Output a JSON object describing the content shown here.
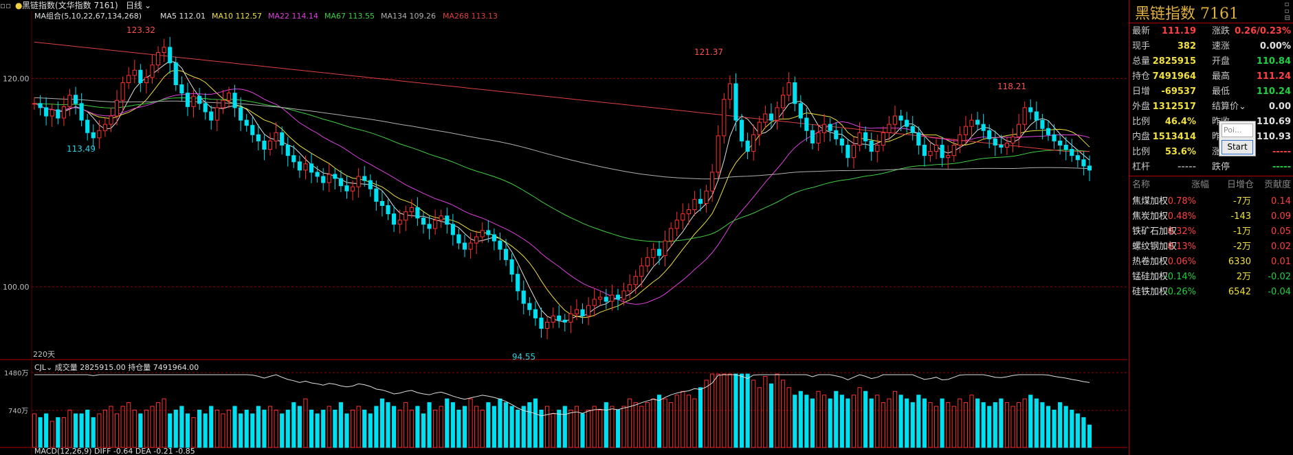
{
  "header": {
    "icons_label": "▫▫",
    "dot": "●",
    "title": "黑链指数(文华指数  7161)",
    "period": "日线",
    "dropdown": "⌄"
  },
  "ma_legend": {
    "group": "MA组合(5,10,22,67,134,268)",
    "items": [
      {
        "label": "MA5 112.01",
        "color": "#e0e0e0"
      },
      {
        "label": "MA10 112.57",
        "color": "#f0e040"
      },
      {
        "label": "MA22 114.14",
        "color": "#e040e0"
      },
      {
        "label": "MA67 113.55",
        "color": "#40d040"
      },
      {
        "label": "MA134 109.26",
        "color": "#b0b0b0"
      },
      {
        "label": "MA268 113.13",
        "color": "#e04040"
      }
    ]
  },
  "price_axis": {
    "labels": [
      {
        "v": 120,
        "text": "120.00"
      },
      {
        "v": 100,
        "text": "100.00"
      }
    ],
    "ymin": 93.2,
    "ymax": 125.3
  },
  "annotations": {
    "high1": "123.32",
    "low1": "113.49",
    "high2": "121.37",
    "low2": "94.55",
    "high3": "118.21",
    "days": "220天"
  },
  "volume": {
    "legend": "CJL⌄ 成交量 2825915.00  持仓量 7491964.00",
    "axis": [
      "1480万",
      "740万"
    ]
  },
  "macd": {
    "legend": "MACD(12,26,9)  DIFF -0.64  DEA -0.21  -0.85"
  },
  "colors": {
    "up": "#ff3030",
    "down": "#00e0f0",
    "grid": "#900000"
  },
  "chart_data": {
    "type": "candlestick",
    "xlabel": "",
    "ylabel": "",
    "ylim": [
      93.2,
      125.3
    ],
    "closes": [
      117.6,
      117.2,
      116.4,
      117.0,
      116.2,
      117.3,
      118.4,
      117.6,
      116.0,
      114.8,
      114.3,
      115.0,
      115.6,
      116.4,
      117.9,
      119.6,
      120.3,
      120.8,
      119.6,
      120.1,
      121.3,
      122.5,
      123.0,
      121.5,
      119.4,
      118.6,
      117.3,
      118.3,
      117.6,
      116.8,
      116.0,
      117.2,
      117.9,
      118.6,
      117.2,
      116.0,
      115.5,
      114.6,
      114.0,
      113.2,
      114.0,
      114.8,
      113.6,
      112.6,
      112.0,
      111.2,
      111.8,
      111.0,
      110.6,
      110.0,
      110.8,
      110.4,
      109.7,
      109.2,
      109.6,
      110.6,
      110.2,
      109.4,
      108.2,
      107.8,
      107.0,
      106.0,
      106.4,
      107.2,
      107.6,
      106.6,
      106.0,
      105.6,
      106.4,
      106.8,
      106.0,
      105.0,
      104.2,
      103.6,
      104.2,
      104.8,
      105.4,
      105.0,
      104.4,
      103.6,
      102.6,
      101.2,
      99.6,
      98.4,
      97.8,
      97.0,
      96.0,
      96.6,
      97.2,
      96.8,
      96.6,
      97.4,
      97.8,
      97.2,
      98.2,
      98.8,
      99.0,
      98.6,
      99.2,
      98.8,
      99.6,
      100.2,
      101.0,
      102.0,
      102.8,
      103.6,
      103.0,
      104.4,
      105.6,
      106.4,
      107.0,
      107.4,
      108.4,
      108.0,
      109.2,
      111.0,
      114.5,
      118.0,
      119.5,
      116.0,
      114.0,
      113.0,
      114.6,
      115.8,
      116.6,
      116.0,
      117.2,
      118.4,
      119.6,
      117.6,
      116.2,
      115.0,
      113.8,
      114.8,
      115.6,
      115.0,
      114.2,
      113.6,
      112.4,
      113.6,
      114.8,
      114.0,
      113.0,
      113.6,
      114.8,
      115.6,
      116.4,
      116.0,
      115.4,
      114.8,
      113.6,
      112.6,
      113.0,
      113.6,
      112.4,
      112.6,
      113.6,
      114.6,
      115.4,
      116.0,
      115.6,
      115.0,
      114.2,
      113.6,
      113.4,
      113.8,
      114.4,
      115.6,
      117.2,
      116.8,
      116.0,
      115.2,
      114.6,
      114.0,
      113.6,
      113.2,
      112.6,
      112.2,
      111.6,
      111.2
    ],
    "ma": [
      {
        "name": "MA5",
        "values": [
          112.01
        ]
      },
      {
        "name": "MA10",
        "values": [
          112.57
        ]
      },
      {
        "name": "MA22",
        "values": [
          114.14
        ]
      },
      {
        "name": "MA67",
        "values": [
          113.55
        ]
      },
      {
        "name": "MA134",
        "values": [
          109.26
        ]
      },
      {
        "name": "MA268",
        "values": [
          113.13
        ]
      }
    ],
    "volume": [
      9,
      8,
      9,
      7,
      8,
      8,
      10,
      9,
      9,
      10,
      8,
      9,
      10,
      11,
      9,
      11,
      12,
      10,
      9,
      10,
      11,
      12,
      13,
      9,
      10,
      11,
      9,
      8,
      10,
      9,
      11,
      10,
      9,
      10,
      11,
      9,
      10,
      9,
      11,
      10,
      11,
      10,
      9,
      10,
      12,
      11,
      13,
      10,
      9,
      10,
      11,
      10,
      12,
      9,
      10,
      11,
      10,
      9,
      11,
      13,
      12,
      11,
      10,
      12,
      10,
      11,
      9,
      12,
      10,
      11,
      13,
      12,
      10,
      11,
      13,
      11,
      10,
      12,
      11,
      13,
      12,
      11,
      10,
      11,
      12,
      13,
      10,
      11,
      9,
      10,
      11,
      10,
      11,
      9,
      10,
      11,
      10,
      12,
      11,
      10,
      11,
      13,
      12,
      11,
      12,
      13,
      14,
      13,
      12,
      14,
      15,
      14,
      13,
      16,
      18,
      22,
      25,
      20,
      28,
      26,
      22,
      20,
      18,
      16,
      19,
      17,
      21,
      18,
      16,
      14,
      15,
      14,
      13,
      15,
      14,
      13,
      15,
      14,
      13,
      14,
      16,
      15,
      13,
      14,
      12,
      13,
      15,
      14,
      13,
      12,
      14,
      13,
      12,
      11,
      13,
      12,
      11,
      13,
      12,
      14,
      13,
      12,
      11,
      12,
      13,
      12,
      11,
      12,
      13,
      14,
      13,
      12,
      11,
      10,
      12,
      11,
      10,
      9,
      8,
      6
    ]
  },
  "quote": {
    "title": "黑链指数  7161",
    "win_icon": "▫\n▫\n⊟",
    "rows": [
      {
        "l1": "最新",
        "v1": "111.19",
        "c1": "red",
        "l2": "涨跌",
        "v2": "0.26/0.23%",
        "c2": "red"
      },
      {
        "l1": "现手",
        "v1": "382",
        "c1": "yellow",
        "l2": "速涨",
        "v2": "0.00%",
        "c2": "white"
      },
      {
        "l1": "总量",
        "v1": "2825915",
        "c1": "yellow",
        "l2": "开盘",
        "v2": "110.84",
        "c2": "green"
      },
      {
        "l1": "持仓",
        "v1": "7491964",
        "c1": "yellow",
        "l2": "最高",
        "v2": "111.24",
        "c2": "red"
      },
      {
        "l1": "日增",
        "v1": "-69537",
        "c1": "yellow",
        "l2": "最低",
        "v2": "110.24",
        "c2": "green"
      },
      {
        "l1": "外盘",
        "v1": "1312517",
        "c1": "yellow",
        "l2": "结算价⌄",
        "v2": "0.00",
        "c2": "white"
      },
      {
        "l1": "比例",
        "v1": "46.4%",
        "c1": "yellow",
        "l2": "昨收",
        "v2": "110.69",
        "c2": "white"
      },
      {
        "l1": "内盘",
        "v1": "1513414",
        "c1": "yellow",
        "l2": "昨结",
        "v2": "110.93",
        "c2": "white"
      },
      {
        "l1": "比例",
        "v1": "53.6%",
        "c1": "yellow",
        "l2": "涨停",
        "v2": "-----",
        "c2": "red"
      },
      {
        "l1": "杠杆",
        "v1": "-----",
        "c1": "grey",
        "l2": "跌停",
        "v2": "-----",
        "c2": "green"
      }
    ],
    "list_header": [
      "名称",
      "涨幅",
      "日增仓",
      "贡献度"
    ],
    "list": [
      {
        "name": "焦煤加权",
        "chg": "0.78%",
        "cc": "red",
        "inc": "-7万",
        "contrib": "0.14",
        "kc": "red"
      },
      {
        "name": "焦炭加权",
        "chg": "0.48%",
        "cc": "red",
        "inc": "-143",
        "contrib": "0.09",
        "kc": "red"
      },
      {
        "name": "铁矿石加权",
        "chg": "0.32%",
        "cc": "red",
        "inc": "-1万",
        "contrib": "0.05",
        "kc": "red"
      },
      {
        "name": "螺纹钢加权",
        "chg": "0.13%",
        "cc": "red",
        "inc": "-2万",
        "contrib": "0.02",
        "kc": "red"
      },
      {
        "name": "热卷加权",
        "chg": "0.06%",
        "cc": "red",
        "inc": "6330",
        "contrib": "0.01",
        "kc": "red"
      },
      {
        "name": "锰硅加权",
        "chg": "-0.14%",
        "cc": "green",
        "inc": "2万",
        "contrib": "-0.02",
        "kc": "green"
      },
      {
        "name": "硅铁加权",
        "chg": "-0.26%",
        "cc": "green",
        "inc": "6542",
        "contrib": "-0.04",
        "kc": "green"
      }
    ]
  },
  "popup": {
    "input_placeholder": "Poi...",
    "button": "Start"
  }
}
